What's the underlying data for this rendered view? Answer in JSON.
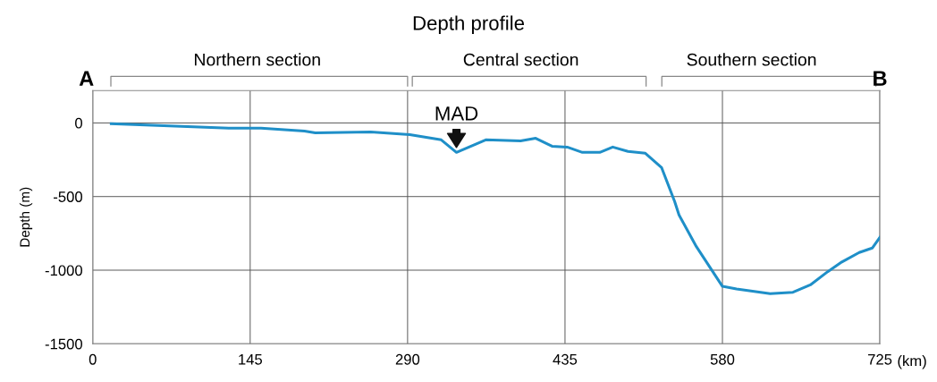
{
  "chart_data": {
    "type": "line",
    "title": "Depth profile",
    "xlabel": "(km)",
    "ylabel": "Depth (m)",
    "x": [
      17,
      126,
      155,
      195,
      205,
      256,
      292,
      321,
      335,
      362,
      394,
      408,
      423,
      437,
      451,
      467,
      479,
      493,
      509,
      524,
      536,
      540,
      556,
      580,
      593,
      624,
      645,
      661,
      677,
      690,
      706,
      718,
      725
    ],
    "series": [
      {
        "color": "#1f8fc8",
        "values": [
          -6,
          -36,
          -36,
          -55,
          -67,
          -61,
          -79,
          -115,
          -200,
          -115,
          -122,
          -104,
          -158,
          -164,
          -200,
          -200,
          -164,
          -194,
          -206,
          -304,
          -534,
          -625,
          -840,
          -1110,
          -1128,
          -1160,
          -1150,
          -1100,
          -1010,
          -944,
          -880,
          -850,
          -777
        ]
      }
    ],
    "xlim": [
      0,
      725
    ],
    "ylim": [
      -1500,
      220
    ],
    "xticks": [
      0,
      145,
      290,
      435,
      580,
      725
    ],
    "yticks": [
      {
        "value": -1500,
        "label": "-1500"
      },
      {
        "value": -1000,
        "label": "-1000"
      },
      {
        "value": -500,
        "label": "-500"
      },
      0
    ],
    "grid": true,
    "marker": "none",
    "line_style": "solid",
    "annotations": [
      "A",
      "B",
      "Northern section",
      "Central section",
      "Southern section",
      {
        "text": "MAD",
        "x": 335,
        "y": -200
      }
    ]
  }
}
